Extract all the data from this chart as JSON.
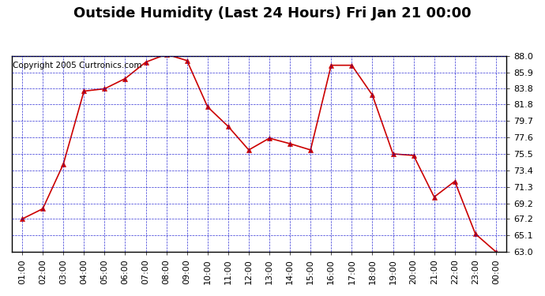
{
  "title": "Outside Humidity (Last 24 Hours) Fri Jan 21 00:00",
  "copyright": "Copyright 2005 Curtronics.com",
  "x_labels": [
    "01:00",
    "02:00",
    "03:00",
    "04:00",
    "05:00",
    "06:00",
    "07:00",
    "08:00",
    "09:00",
    "10:00",
    "11:00",
    "12:00",
    "13:00",
    "14:00",
    "15:00",
    "16:00",
    "17:00",
    "18:00",
    "19:00",
    "20:00",
    "21:00",
    "22:00",
    "23:00",
    "00:00"
  ],
  "y_values": [
    67.2,
    68.5,
    74.2,
    83.5,
    83.8,
    85.1,
    87.2,
    88.2,
    87.4,
    81.5,
    79.0,
    76.0,
    77.5,
    76.8,
    76.0,
    86.8,
    86.8,
    83.0,
    75.5,
    75.3,
    70.0,
    72.0,
    65.3,
    63.0
  ],
  "x_indices": [
    1,
    2,
    3,
    4,
    5,
    6,
    7,
    8,
    9,
    10,
    11,
    12,
    13,
    14,
    15,
    16,
    17,
    18,
    19,
    20,
    21,
    22,
    23,
    24
  ],
  "ylim_min": 63.0,
  "ylim_max": 88.0,
  "yticks": [
    63.0,
    65.1,
    67.2,
    69.2,
    71.3,
    73.4,
    75.5,
    77.6,
    79.7,
    81.8,
    83.8,
    85.9,
    88.0
  ],
  "line_color": "#cc0000",
  "marker": "^",
  "marker_color": "#cc0000",
  "marker_size": 4,
  "grid_color": "#0000cc",
  "grid_style": "--",
  "background_color": "#ffffff",
  "plot_bg_color": "#ffffff",
  "title_fontsize": 13,
  "copyright_fontsize": 7.5,
  "tick_fontsize": 8
}
